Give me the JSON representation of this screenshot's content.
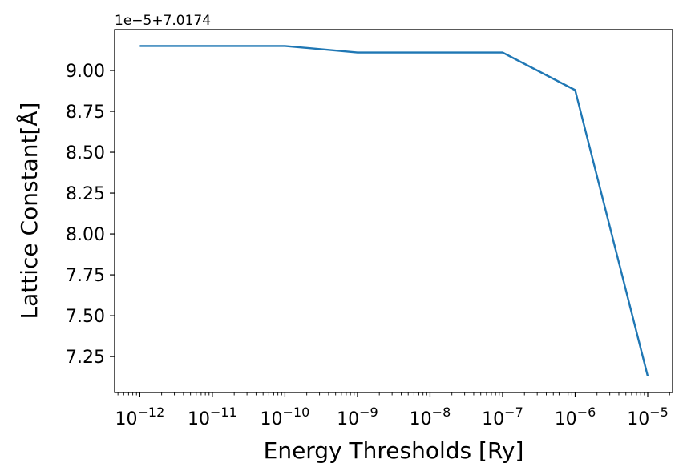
{
  "chart_data": {
    "type": "line",
    "xscale": "log",
    "x": [
      1e-12,
      1e-10,
      1e-09,
      1e-07,
      1e-06,
      1e-05
    ],
    "y": [
      9.15e-05,
      9.15e-05,
      9.11e-05,
      9.11e-05,
      8.88e-05,
      7.13e-05
    ],
    "y_offset": 7.0174,
    "offset_text": "1e−5+7.0174",
    "xlim": [
      4.5e-13,
      2.2e-05
    ],
    "ylim": [
      7.03e-05,
      9.25e-05
    ],
    "xlabel": "Energy Thresholds [Ry]",
    "ylabel": "Lattice Constant[Å]",
    "x_ticks": [
      {
        "value": 1e-12,
        "base": "10",
        "exp": "−12"
      },
      {
        "value": 1e-11,
        "base": "10",
        "exp": "−11"
      },
      {
        "value": 1e-10,
        "base": "10",
        "exp": "−10"
      },
      {
        "value": 1e-09,
        "base": "10",
        "exp": "−9"
      },
      {
        "value": 1e-08,
        "base": "10",
        "exp": "−8"
      },
      {
        "value": 1e-07,
        "base": "10",
        "exp": "−7"
      },
      {
        "value": 1e-06,
        "base": "10",
        "exp": "−6"
      },
      {
        "value": 1e-05,
        "base": "10",
        "exp": "−5"
      }
    ],
    "y_ticks": [
      {
        "value": 7.25e-05,
        "label": "7.25"
      },
      {
        "value": 7.5e-05,
        "label": "7.50"
      },
      {
        "value": 7.75e-05,
        "label": "7.75"
      },
      {
        "value": 8e-05,
        "label": "8.00"
      },
      {
        "value": 8.25e-05,
        "label": "8.25"
      },
      {
        "value": 8.5e-05,
        "label": "8.50"
      },
      {
        "value": 8.75e-05,
        "label": "8.75"
      },
      {
        "value": 9e-05,
        "label": "9.00"
      }
    ],
    "line_color": "#1f77b4",
    "grid": false,
    "legend": "none"
  }
}
